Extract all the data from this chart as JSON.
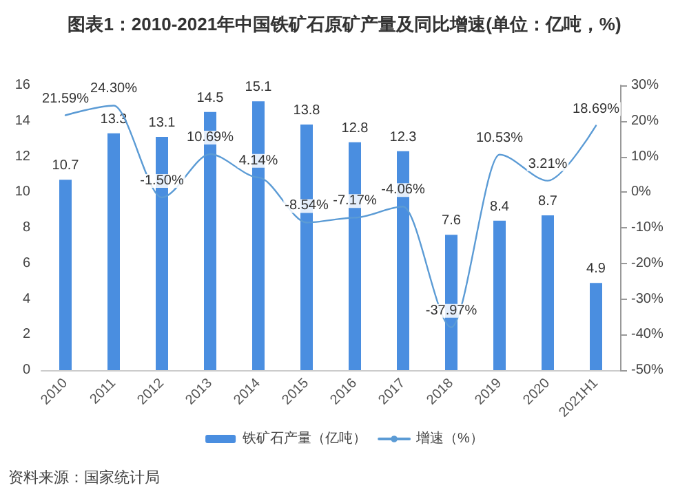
{
  "chart_data": {
    "type": "bar",
    "title": "图表1：2010-2021年中国铁矿石原矿产量及同比增速(单位：亿吨，%)",
    "categories": [
      "2010",
      "2011",
      "2012",
      "2013",
      "2014",
      "2015",
      "2016",
      "2017",
      "2018",
      "2019",
      "2020",
      "2021H1"
    ],
    "series": [
      {
        "name": "铁矿石产量（亿吨）",
        "color": "#4a8ee0",
        "values": [
          10.7,
          13.3,
          13.1,
          14.5,
          15.1,
          13.8,
          12.8,
          12.3,
          7.6,
          8.4,
          8.7,
          4.9
        ],
        "data_labels": true
      },
      {
        "name": "增速（%）",
        "type": "line",
        "axis": "y2",
        "color": "#5b9bd5",
        "values": [
          21.59,
          24.3,
          -1.5,
          10.69,
          4.14,
          -8.54,
          -7.17,
          -4.06,
          -37.97,
          10.53,
          3.21,
          18.69
        ],
        "value_labels": [
          "21.59%",
          "24.30%",
          "-1.50%",
          "10.69%",
          "4.14%",
          "-8.54%",
          "-7.17%",
          "-4.06%",
          "-37.97%",
          "10.53%",
          "3.21%",
          "18.69%"
        ]
      }
    ],
    "ylim": [
      0,
      16
    ],
    "yticks": [
      0,
      2,
      4,
      6,
      8,
      10,
      12,
      14,
      16
    ],
    "y2lim": [
      -50,
      30
    ],
    "y2ticks": [
      {
        "value": -50,
        "label": "-50%"
      },
      {
        "value": -40,
        "label": "-40%"
      },
      {
        "value": -30,
        "label": "-30%"
      },
      {
        "value": -20,
        "label": "-20%"
      },
      {
        "value": -10,
        "label": "-10%"
      },
      {
        "value": 0,
        "label": "0%"
      },
      {
        "value": 10,
        "label": "10%"
      },
      {
        "value": 20,
        "label": "20%"
      },
      {
        "value": 30,
        "label": "30%"
      }
    ],
    "legend": "bottom",
    "marker": "none",
    "line_style": "solid",
    "grid": false,
    "annotations": [
      "资料来源：国家统计局"
    ]
  }
}
